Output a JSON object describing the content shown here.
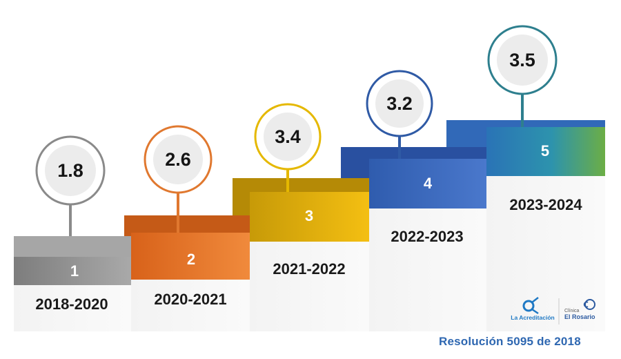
{
  "steps": [
    {
      "number": "1",
      "period": "2018-2020",
      "score": "1.8",
      "color": "#8a8a8a",
      "ring": "#8a8a8a"
    },
    {
      "number": "2",
      "period": "2020-2021",
      "score": "2.6",
      "color": "#e2762a",
      "ring": "#e0782f"
    },
    {
      "number": "3",
      "period": "2021-2022",
      "score": "3.4",
      "color": "#e5ac0b",
      "ring": "#e5b800"
    },
    {
      "number": "4",
      "period": "2022-2023",
      "score": "3.2",
      "color": "#3a64b8",
      "ring": "#2f5aa5"
    },
    {
      "number": "5",
      "period": "2023-2024",
      "score": "3.5",
      "color": "#2c8fb3",
      "ring": "#2e7f8e"
    }
  ],
  "logos": {
    "acreditacion_name": "La Acreditación",
    "clinica_label": "Clínica",
    "clinica_name": "El Rosario"
  },
  "footer": {
    "resolution": "Resolución 5095 de 2018"
  }
}
